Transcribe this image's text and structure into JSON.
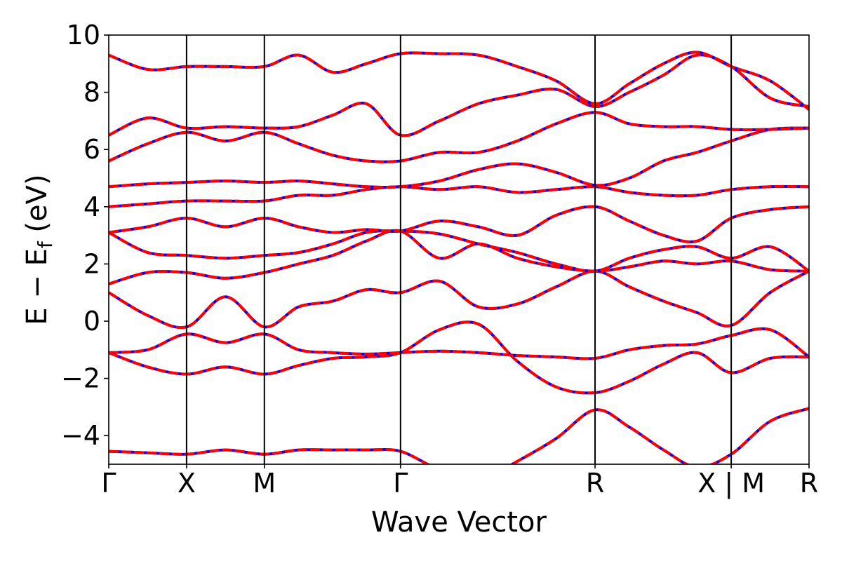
{
  "chart_data": {
    "type": "line",
    "title": "",
    "xlabel": "Wave Vector",
    "ylabel": "E − E",
    "ylabel_subscript": "f",
    "ylabel_unit": " (eV)",
    "ylim": [
      -5,
      10
    ],
    "yticks": [
      {
        "value": -4,
        "label": "−4"
      },
      {
        "value": -2,
        "label": "−2"
      },
      {
        "value": 0,
        "label": "0"
      },
      {
        "value": 2,
        "label": "2"
      },
      {
        "value": 4,
        "label": "4"
      },
      {
        "value": 6,
        "label": "6"
      },
      {
        "value": 8,
        "label": "8"
      },
      {
        "value": 10,
        "label": "10"
      }
    ],
    "xlim": [
      0,
      9
    ],
    "kpoints": [
      {
        "x": 0,
        "label": "Γ"
      },
      {
        "x": 1,
        "label": "X"
      },
      {
        "x": 2,
        "label": "M"
      },
      {
        "x": 3.75,
        "label": "Γ"
      },
      {
        "x": 6.25,
        "label": "R"
      },
      {
        "x": 8,
        "label": "X | M"
      },
      {
        "x": 9,
        "label": "R"
      }
    ],
    "grid": false,
    "legend": "none",
    "series_styles": [
      {
        "style": "solid",
        "color": "#0000ff"
      },
      {
        "style": "dashed",
        "color": "#ff0000"
      }
    ],
    "x": [
      0,
      0.5,
      1,
      1.5,
      2,
      2.44,
      2.88,
      3.31,
      3.75,
      4.25,
      4.75,
      5.25,
      5.75,
      6.25,
      6.69,
      7.13,
      7.56,
      8,
      8.5,
      9
    ],
    "bands": [
      {
        "name": "",
        "values": [
          -4.55,
          -4.6,
          -4.65,
          -4.5,
          -4.65,
          -4.5,
          -4.5,
          -4.5,
          -4.55,
          -5.2,
          -5.6,
          -4.9,
          -4.1,
          -3.1,
          -3.7,
          -4.5,
          -5.1,
          -4.65,
          -3.5,
          -3.05
        ]
      },
      {
        "name": "",
        "values": [
          -1.1,
          -1.6,
          -1.85,
          -1.6,
          -1.85,
          -1.55,
          -1.3,
          -1.25,
          -1.1,
          -0.3,
          -0.1,
          -1.4,
          -2.3,
          -2.5,
          -2.1,
          -1.5,
          -1.1,
          -1.8,
          -1.3,
          -1.25
        ]
      },
      {
        "name": "",
        "values": [
          -1.1,
          -1.0,
          -0.45,
          -0.75,
          -0.45,
          -1.0,
          -1.1,
          -1.15,
          -1.1,
          -1.05,
          -1.1,
          -1.2,
          -1.25,
          -1.3,
          -1.0,
          -0.85,
          -0.8,
          -0.5,
          -0.3,
          -1.25
        ]
      },
      {
        "name": "",
        "values": [
          1.0,
          0.2,
          -0.2,
          0.85,
          -0.2,
          0.5,
          0.7,
          1.1,
          1.0,
          1.4,
          0.5,
          0.6,
          1.2,
          1.75,
          1.2,
          0.7,
          0.3,
          -0.15,
          1.0,
          1.75
        ]
      },
      {
        "name": "",
        "values": [
          1.3,
          1.7,
          1.7,
          1.5,
          1.7,
          2.0,
          2.3,
          2.8,
          3.15,
          2.2,
          2.7,
          2.2,
          1.9,
          1.75,
          1.9,
          2.1,
          2.0,
          2.1,
          1.8,
          1.75
        ]
      },
      {
        "name": "",
        "values": [
          3.1,
          2.4,
          2.3,
          2.2,
          2.3,
          2.4,
          2.7,
          3.1,
          3.15,
          3.05,
          2.7,
          2.4,
          2.0,
          1.75,
          2.2,
          2.5,
          2.6,
          2.2,
          2.6,
          1.75
        ]
      },
      {
        "name": "",
        "values": [
          3.1,
          3.3,
          3.6,
          3.3,
          3.6,
          3.3,
          3.1,
          3.2,
          3.15,
          3.5,
          3.3,
          3.0,
          3.7,
          4.0,
          3.5,
          3.0,
          2.8,
          3.6,
          3.9,
          4.0
        ]
      },
      {
        "name": "",
        "values": [
          4.0,
          4.1,
          4.2,
          4.2,
          4.2,
          4.4,
          4.4,
          4.6,
          4.7,
          4.6,
          4.7,
          4.5,
          4.6,
          4.7,
          4.5,
          4.4,
          4.4,
          4.6,
          4.7,
          4.7
        ]
      },
      {
        "name": "",
        "values": [
          4.7,
          4.8,
          4.85,
          4.9,
          4.85,
          4.9,
          4.8,
          4.7,
          4.7,
          4.9,
          5.3,
          5.5,
          5.2,
          4.75,
          5.0,
          5.6,
          5.9,
          6.3,
          6.7,
          6.75
        ]
      },
      {
        "name": "",
        "values": [
          5.6,
          6.2,
          6.6,
          6.3,
          6.6,
          6.2,
          5.8,
          5.6,
          5.6,
          5.9,
          5.9,
          6.3,
          6.9,
          7.3,
          6.9,
          6.8,
          6.8,
          6.7,
          6.7,
          6.75
        ]
      },
      {
        "name": "",
        "values": [
          6.5,
          7.1,
          6.75,
          6.8,
          6.75,
          6.8,
          7.2,
          7.6,
          6.5,
          7.0,
          7.6,
          7.9,
          8.1,
          7.5,
          8.0,
          8.6,
          9.3,
          8.9,
          7.8,
          7.5
        ]
      },
      {
        "name": "",
        "values": [
          9.3,
          8.8,
          8.9,
          8.9,
          8.9,
          9.3,
          8.7,
          9.0,
          9.35,
          9.35,
          9.3,
          8.9,
          8.4,
          7.6,
          8.3,
          9.0,
          9.4,
          8.9,
          8.4,
          7.4
        ]
      }
    ]
  }
}
